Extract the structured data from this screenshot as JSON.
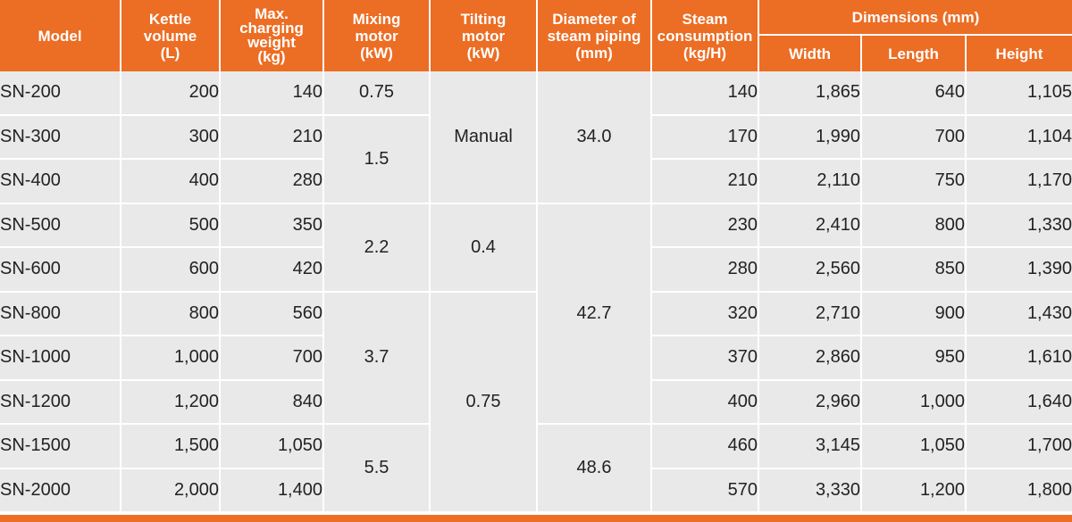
{
  "accent_color": "#ec6d24",
  "header": {
    "model": "Model",
    "kettle_volume": [
      "Kettle",
      "volume",
      "(L)"
    ],
    "max_charging": [
      "Max.",
      "charging",
      "weight",
      "(kg)"
    ],
    "mixing_motor": [
      "Mixing",
      "motor",
      "(kW)"
    ],
    "tilting_motor": [
      "Tilting",
      "motor",
      "(kW)"
    ],
    "steam_piping": [
      "Diameter of",
      "steam piping",
      "(mm)"
    ],
    "steam_consumption": [
      "Steam",
      "consumption",
      "(kg/H)"
    ],
    "dimensions": "Dimensions (mm)",
    "width": "Width",
    "length": "Length",
    "height": "Height"
  },
  "rows": [
    {
      "model": "SN-200",
      "volume": "200",
      "charging": "140",
      "steam": "140",
      "width": "1,865",
      "length": "640",
      "height": "1,105"
    },
    {
      "model": "SN-300",
      "volume": "300",
      "charging": "210",
      "steam": "170",
      "width": "1,990",
      "length": "700",
      "height": "1,104"
    },
    {
      "model": "SN-400",
      "volume": "400",
      "charging": "280",
      "steam": "210",
      "width": "2,110",
      "length": "750",
      "height": "1,170"
    },
    {
      "model": "SN-500",
      "volume": "500",
      "charging": "350",
      "steam": "230",
      "width": "2,410",
      "length": "800",
      "height": "1,330"
    },
    {
      "model": "SN-600",
      "volume": "600",
      "charging": "420",
      "steam": "280",
      "width": "2,560",
      "length": "850",
      "height": "1,390"
    },
    {
      "model": "SN-800",
      "volume": "800",
      "charging": "560",
      "steam": "320",
      "width": "2,710",
      "length": "900",
      "height": "1,430"
    },
    {
      "model": "SN-1000",
      "volume": "1,000",
      "charging": "700",
      "steam": "370",
      "width": "2,860",
      "length": "950",
      "height": "1,610"
    },
    {
      "model": "SN-1200",
      "volume": "1,200",
      "charging": "840",
      "steam": "400",
      "width": "2,960",
      "length": "1,000",
      "height": "1,640"
    },
    {
      "model": "SN-1500",
      "volume": "1,500",
      "charging": "1,050",
      "steam": "460",
      "width": "3,145",
      "length": "1,050",
      "height": "1,700"
    },
    {
      "model": "SN-2000",
      "volume": "2,000",
      "charging": "1,400",
      "steam": "570",
      "width": "3,330",
      "length": "1,200",
      "height": "1,800"
    }
  ],
  "mixing_motor_groups": [
    "0.75",
    "1.5",
    "2.2",
    "3.7",
    "5.5"
  ],
  "tilting_motor_groups": [
    "Manual",
    "0.4",
    "0.75"
  ],
  "steam_piping_groups": [
    "34.0",
    "42.7",
    "48.6"
  ]
}
